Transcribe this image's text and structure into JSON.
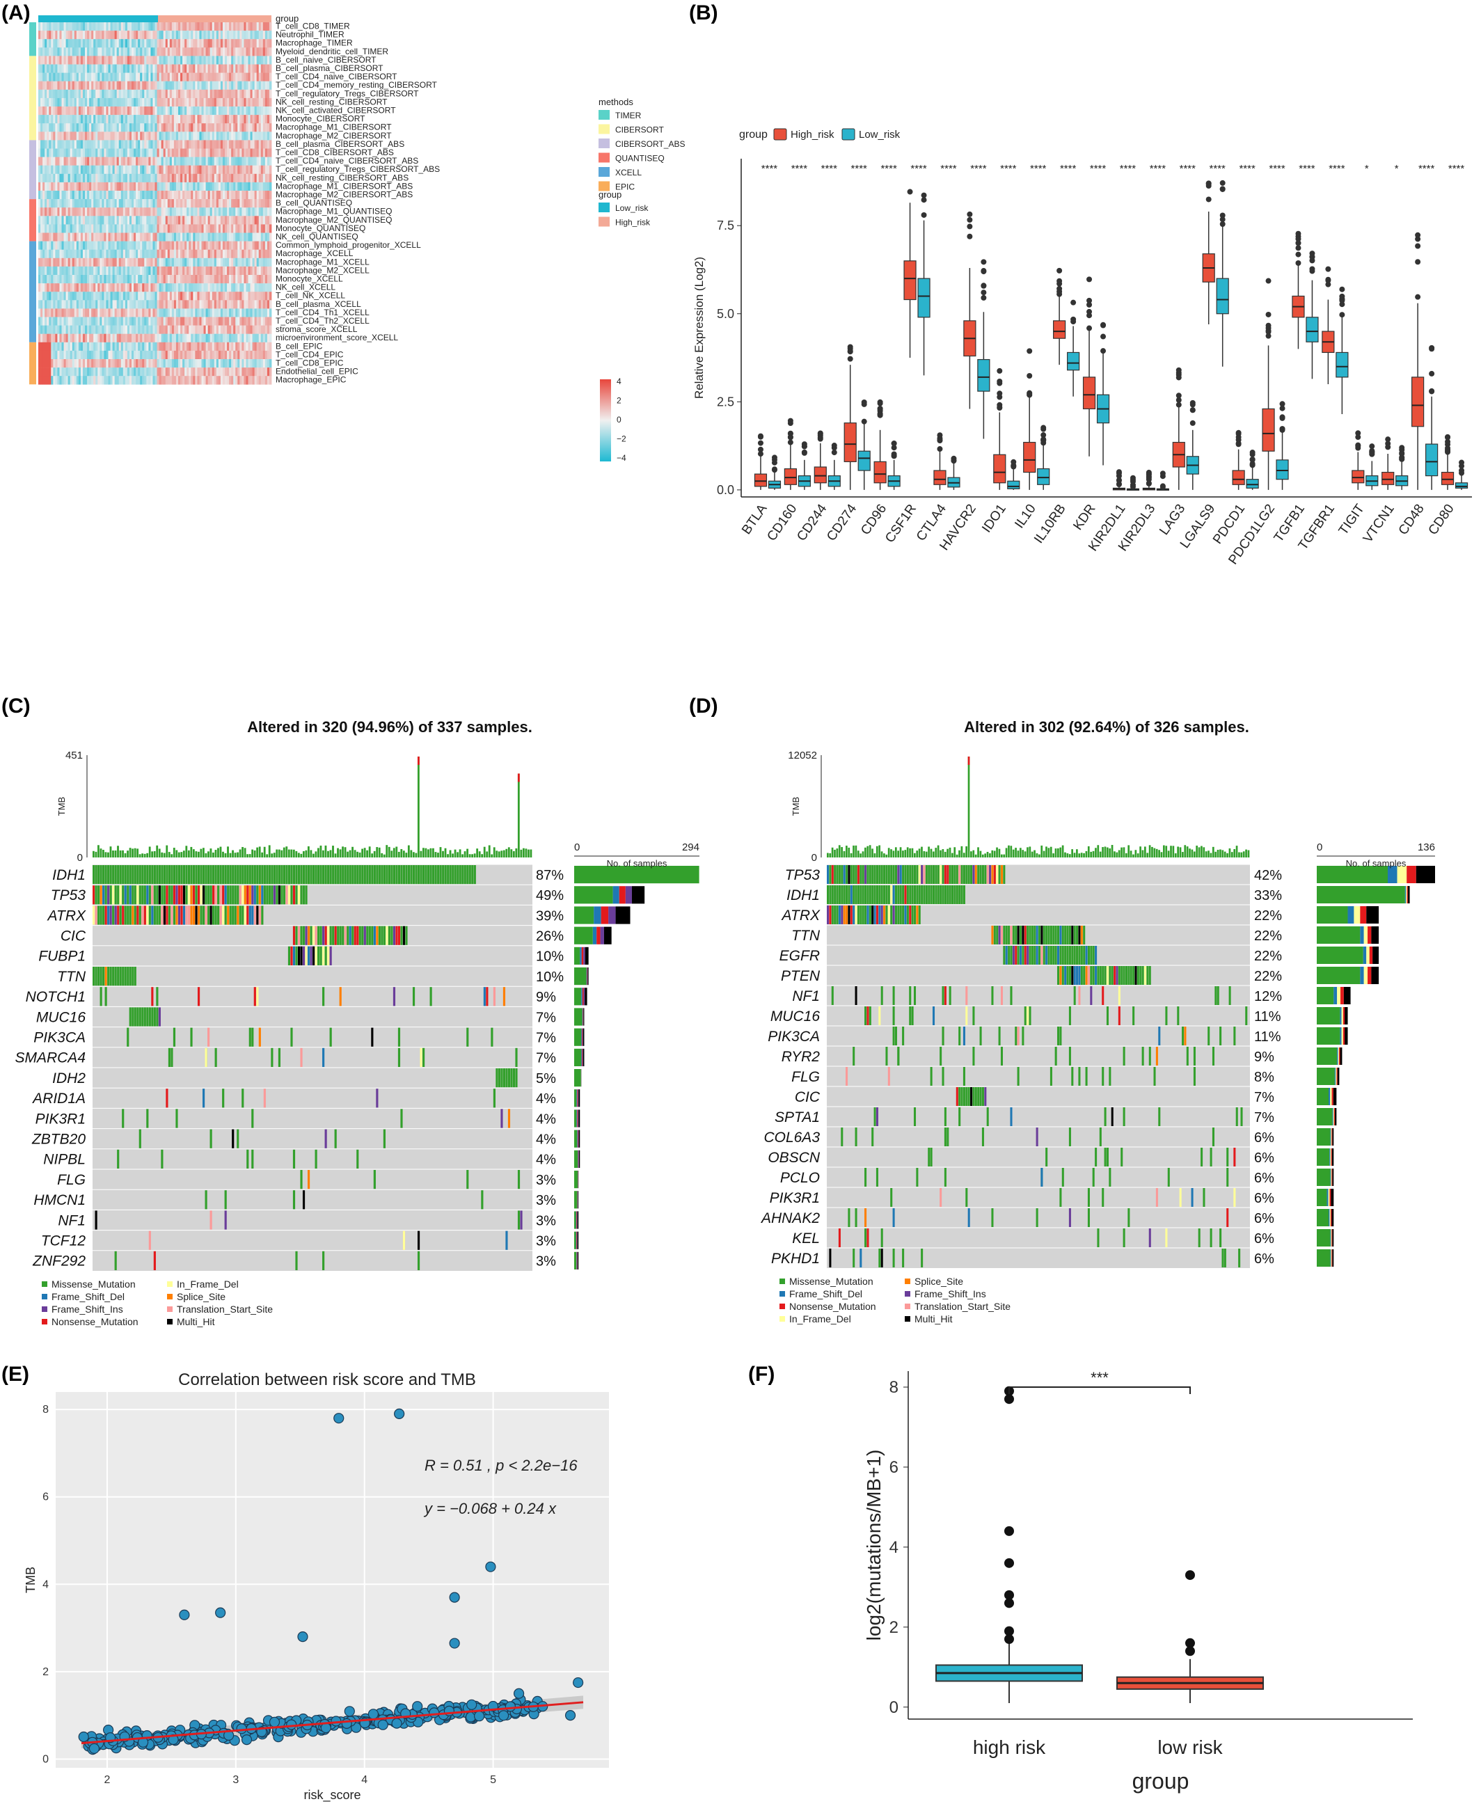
{
  "panels": {
    "a": "(A)",
    "b": "(B)",
    "c": "(C)",
    "d": "(D)",
    "e": "(E)",
    "f": "(F)"
  },
  "panel_a": {
    "group_title": "group",
    "rows": [
      "T_cell_CD8_TIMER",
      "Neutrophil_TIMER",
      "Macrophage_TIMER",
      "Myeloid_dendritic_cell_TIMER",
      "B_cell_naive_CIBERSORT",
      "B_cell_plasma_CIBERSORT",
      "T_cell_CD4_naive_CIBERSORT",
      "T_cell_CD4_memory_resting_CIBERSORT",
      "T_cell_regulatory_Tregs_CIBERSORT",
      "NK_cell_resting_CIBERSORT",
      "NK_cell_activated_CIBERSORT",
      "Monocyte_CIBERSORT",
      "Macrophage_M1_CIBERSORT",
      "Macrophage_M2_CIBERSORT",
      "B_cell_plasma_CIBERSORT_ABS",
      "T_cell_CD8_CIBERSORT_ABS",
      "T_cell_CD4_naive_CIBERSORT_ABS",
      "T_cell_regulatory_Tregs_CIBERSORT_ABS",
      "NK_cell_resting_CIBERSORT_ABS",
      "Macrophage_M1_CIBERSORT_ABS",
      "Macrophage_M2_CIBERSORT_ABS",
      "B_cell_QUANTISEQ",
      "Macrophage_M1_QUANTISEQ",
      "Macrophage_M2_QUANTISEQ",
      "Monocyte_QUANTISEQ",
      "NK_cell_QUANTISEQ",
      "Common_lymphoid_progenitor_XCELL",
      "Macrophage_XCELL",
      "Macrophage_M1_XCELL",
      "Macrophage_M2_XCELL",
      "Monocyte_XCELL",
      "NK_cell_XCELL",
      "T_cell_NK_XCELL",
      "B_cell_plasma_XCELL",
      "T_cell_CD4_Th1_XCELL",
      "T_cell_CD4_Th2_XCELL",
      "stroma_score_XCELL",
      "microenvironment_score_XCELL",
      "B_cell_EPIC",
      "T_cell_CD4_EPIC",
      "T_cell_CD8_EPIC",
      "Endothelial_cell_EPIC",
      "Macrophage_EPIC"
    ],
    "methods_title": "methods",
    "methods": [
      {
        "name": "TIMER",
        "color": "#5ad2c8",
        "count": 4
      },
      {
        "name": "CIBERSORT",
        "color": "#fbf5a0",
        "count": 10
      },
      {
        "name": "CIBERSORT_ABS",
        "color": "#c5bfe0",
        "count": 7
      },
      {
        "name": "QUANTISEQ",
        "color": "#f7766a",
        "count": 5
      },
      {
        "name": "XCELL",
        "color": "#5aa7d9",
        "count": 12
      },
      {
        "name": "EPIC",
        "color": "#f9ad5a",
        "count": 5
      }
    ],
    "group_legend_title": "group",
    "groups": [
      {
        "name": "Low_risk",
        "color": "#1fb7cf"
      },
      {
        "name": "High_risk",
        "color": "#f3a996"
      }
    ],
    "scale_ticks": [
      "4",
      "2",
      "0",
      "−2",
      "−4"
    ]
  },
  "chart_data": [
    {
      "panel": "B",
      "type": "box",
      "ylabel": "Relative Expression (Log2)",
      "legend_title": "group",
      "series": [
        {
          "name": "High_risk",
          "color": "#e8503a"
        },
        {
          "name": "Low_risk",
          "color": "#2bb3cc"
        }
      ],
      "ylim": [
        -0.2,
        9.4
      ],
      "yticks": [
        "0.0",
        "2.5",
        "5.0",
        "7.5"
      ],
      "genes": [
        "BTLA",
        "CD160",
        "CD244",
        "CD274",
        "CD96",
        "CSF1R",
        "CTLA4",
        "HAVCR2",
        "IDO1",
        "IL10",
        "IL10RB",
        "KDR",
        "KIR2DL1",
        "KIR2DL3",
        "LAG3",
        "LGALS9",
        "PDCD1",
        "PDCD1LG2",
        "TGFB1",
        "TGFBR1",
        "TIGIT",
        "VTCN1",
        "CD48",
        "CD80"
      ],
      "significance": [
        "****",
        "****",
        "****",
        "****",
        "****",
        "****",
        "****",
        "****",
        "****",
        "****",
        "****",
        "****",
        "****",
        "****",
        "****",
        "****",
        "****",
        "****",
        "****",
        "****",
        "*",
        "*",
        "****",
        "****"
      ],
      "high_median": [
        0.25,
        0.35,
        0.4,
        1.3,
        0.45,
        6.0,
        0.3,
        4.3,
        0.5,
        0.85,
        4.5,
        2.7,
        0.03,
        0.03,
        1.0,
        6.3,
        0.3,
        1.6,
        5.2,
        4.2,
        0.35,
        0.3,
        2.4,
        0.3
      ],
      "low_median": [
        0.15,
        0.25,
        0.25,
        0.9,
        0.25,
        5.5,
        0.2,
        3.2,
        0.1,
        0.35,
        3.6,
        2.3,
        0.02,
        0.02,
        0.7,
        5.4,
        0.15,
        0.55,
        4.5,
        3.5,
        0.25,
        0.25,
        0.8,
        0.1
      ],
      "high_q1": [
        0.1,
        0.15,
        0.2,
        0.8,
        0.2,
        5.4,
        0.15,
        3.8,
        0.2,
        0.5,
        4.3,
        2.3,
        0.0,
        0.0,
        0.65,
        5.9,
        0.15,
        1.1,
        4.9,
        3.9,
        0.2,
        0.15,
        1.8,
        0.15
      ],
      "high_q3": [
        0.45,
        0.6,
        0.65,
        1.9,
        0.8,
        6.5,
        0.55,
        4.8,
        1.0,
        1.35,
        4.8,
        3.2,
        0.05,
        0.05,
        1.35,
        6.7,
        0.55,
        2.3,
        5.5,
        4.5,
        0.55,
        0.5,
        3.2,
        0.5
      ],
      "low_q1": [
        0.05,
        0.1,
        0.1,
        0.55,
        0.1,
        4.9,
        0.08,
        2.8,
        0.03,
        0.15,
        3.4,
        1.9,
        0.0,
        0.0,
        0.45,
        5.0,
        0.05,
        0.3,
        4.2,
        3.2,
        0.12,
        0.12,
        0.4,
        0.05
      ],
      "low_q3": [
        0.25,
        0.4,
        0.4,
        1.1,
        0.4,
        6.0,
        0.35,
        3.7,
        0.25,
        0.6,
        3.9,
        2.7,
        0.03,
        0.03,
        0.95,
        6.0,
        0.3,
        0.85,
        4.9,
        3.9,
        0.4,
        0.4,
        1.3,
        0.2
      ]
    },
    {
      "panel": "E",
      "type": "scatter",
      "title": "Correlation between risk score and TMB",
      "xlabel": "risk_score",
      "ylabel": "TMB",
      "xlim": [
        1.6,
        5.9
      ],
      "ylim": [
        -0.2,
        8.4
      ],
      "xticks": [
        2,
        3,
        4,
        5
      ],
      "yticks": [
        0,
        2,
        4,
        6,
        8
      ],
      "annotation_r": "R = 0.51 , p < 2.2e−16",
      "annotation_eq": "y = −0.068 + 0.24 x",
      "fit": {
        "intercept": -0.068,
        "slope": 0.24
      },
      "outliers": [
        [
          3.8,
          7.8
        ],
        [
          4.27,
          7.9
        ],
        [
          2.6,
          3.3
        ],
        [
          2.88,
          3.35
        ],
        [
          3.52,
          2.8
        ],
        [
          4.7,
          3.7
        ],
        [
          4.98,
          4.4
        ],
        [
          4.7,
          2.65
        ],
        [
          5.66,
          1.75
        ],
        [
          5.2,
          1.5
        ],
        [
          5.6,
          1.0
        ]
      ]
    },
    {
      "panel": "F",
      "type": "box",
      "xlabel": "group",
      "ylabel": "log2(mutations/MB+1)",
      "categories": [
        "high risk",
        "low risk"
      ],
      "colors": [
        "#2bb3cc",
        "#e8503a"
      ],
      "ylim": [
        -0.3,
        8.4
      ],
      "yticks": [
        0,
        2,
        4,
        6,
        8
      ],
      "median": [
        0.85,
        0.6
      ],
      "q1": [
        0.65,
        0.45
      ],
      "q3": [
        1.05,
        0.75
      ],
      "whisker_low": [
        0.1,
        0.1
      ],
      "whisker_high": [
        1.6,
        1.2
      ],
      "outliers": [
        [
          7.9,
          7.7,
          4.4,
          3.6,
          2.8,
          2.6,
          1.9,
          1.7
        ],
        [
          3.3,
          1.6,
          1.4
        ]
      ],
      "significance": "***"
    }
  ],
  "panel_c": {
    "title": "Altered in 320 (94.96%) of 337 samples.",
    "tmb_label": "TMB",
    "tmb_max": "451",
    "tmb_min": "0",
    "bar_title": "No. of samples",
    "bar_min": "0",
    "bar_max": "294",
    "genes": [
      "IDH1",
      "TP53",
      "ATRX",
      "CIC",
      "FUBP1",
      "TTN",
      "NOTCH1",
      "MUC16",
      "PIK3CA",
      "SMARCA4",
      "IDH2",
      "ARID1A",
      "PIK3R1",
      "ZBTB20",
      "NIPBL",
      "FLG",
      "HMCN1",
      "NF1",
      "TCF12",
      "ZNF292"
    ],
    "pcts": [
      "87%",
      "49%",
      "39%",
      "26%",
      "10%",
      "10%",
      "9%",
      "7%",
      "7%",
      "7%",
      "5%",
      "4%",
      "4%",
      "4%",
      "4%",
      "3%",
      "3%",
      "3%",
      "3%",
      "3%"
    ],
    "legend": [
      {
        "name": "Missense_Mutation",
        "color": "#33a02c"
      },
      {
        "name": "Frame_Shift_Del",
        "color": "#1f78b4"
      },
      {
        "name": "Frame_Shift_Ins",
        "color": "#6a3d9a"
      },
      {
        "name": "Nonsense_Mutation",
        "color": "#e31a1c"
      },
      {
        "name": "In_Frame_Del",
        "color": "#ffff99"
      },
      {
        "name": "Splice_Site",
        "color": "#ff7f00"
      },
      {
        "name": "Translation_Start_Site",
        "color": "#fb9a99"
      },
      {
        "name": "Multi_Hit",
        "color": "#000000"
      }
    ]
  },
  "panel_d": {
    "title": "Altered in 302 (92.64%) of 326 samples.",
    "tmb_label": "TMB",
    "tmb_max": "12052",
    "tmb_min": "0",
    "bar_title": "No. of samples",
    "bar_min": "0",
    "bar_max": "136",
    "genes": [
      "TP53",
      "IDH1",
      "ATRX",
      "TTN",
      "EGFR",
      "PTEN",
      "NF1",
      "MUC16",
      "PIK3CA",
      "RYR2",
      "FLG",
      "CIC",
      "SPTA1",
      "COL6A3",
      "OBSCN",
      "PCLO",
      "PIK3R1",
      "AHNAK2",
      "KEL",
      "PKHD1"
    ],
    "pcts": [
      "42%",
      "33%",
      "22%",
      "22%",
      "22%",
      "22%",
      "12%",
      "11%",
      "11%",
      "9%",
      "8%",
      "7%",
      "7%",
      "6%",
      "6%",
      "6%",
      "6%",
      "6%",
      "6%",
      "6%"
    ],
    "legend": [
      {
        "name": "Missense_Mutation",
        "color": "#33a02c"
      },
      {
        "name": "Frame_Shift_Del",
        "color": "#1f78b4"
      },
      {
        "name": "Nonsense_Mutation",
        "color": "#e31a1c"
      },
      {
        "name": "In_Frame_Del",
        "color": "#ffff99"
      },
      {
        "name": "Splice_Site",
        "color": "#ff7f00"
      },
      {
        "name": "Frame_Shift_Ins",
        "color": "#6a3d9a"
      },
      {
        "name": "Translation_Start_Site",
        "color": "#fb9a99"
      },
      {
        "name": "Multi_Hit",
        "color": "#000000"
      }
    ]
  }
}
